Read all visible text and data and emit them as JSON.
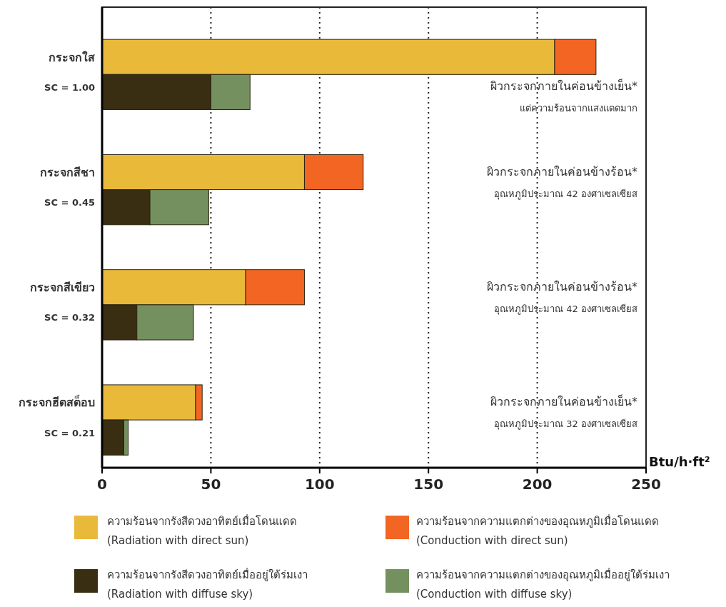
{
  "chart_data": {
    "type": "bar",
    "orientation": "horizontal",
    "stacked": true,
    "categories": [
      "กระจกใส",
      "SC = 1.00",
      "กระจกสีชา",
      "SC = 0.45",
      "กระจกสีเขียว",
      "SC = 0.32",
      "กระจกฮีตสต็อบ",
      "SC = 0.21"
    ],
    "series": [
      {
        "name": "ความร้อนจากรังสีดวงอาทิตย์เมื่อโดนแดด\n(Radiation with direct sun)",
        "color": "#e9b93a",
        "values": [
          208,
          null,
          93,
          null,
          66,
          null,
          43,
          null
        ]
      },
      {
        "name": "ความร้อนจากความแตกต่างของอุณหภูมิเมื่อโดนแดด\n(Conduction with direct sun)",
        "color": "#f26522",
        "values": [
          19,
          null,
          27,
          null,
          27,
          null,
          3,
          null
        ]
      },
      {
        "name": "ความร้อนจากรังสีดวงอาทิตย์เมื่ออยู่ใต้ร่มเงา\n(Radiation with diffuse sky)",
        "color": "#3a2e12",
        "values": [
          null,
          50,
          null,
          22,
          null,
          16,
          null,
          10
        ]
      },
      {
        "name": "ความร้อนจากความแตกต่างของอุณหภูมิเมื่ออยู่ใต้ร่มเงา\n(Conduction with diffuse sky)",
        "color": "#74905f",
        "values": [
          null,
          18,
          null,
          27,
          null,
          26,
          null,
          2
        ]
      }
    ],
    "xlabel": "Btu/h·ft²",
    "xlim": [
      0,
      250
    ],
    "xticks": [
      0,
      50,
      100,
      150,
      200,
      250
    ],
    "grid": "x",
    "legend": "bottom",
    "annotations": [
      "ผิวกระจกภายในค่อนข้างเย็น*",
      "แต่ความร้อนจากแสงแดดมาก",
      "ผิวกระจกภายในค่อนข้างร้อน*",
      "อุณหภูมิประมาณ 42 องศาเซลเซียส",
      "ผิวกระจกภายในค่อนข้างร้อน*",
      "อุณหภูมิประมาณ 42 องศาเซลเซียส",
      "ผิวกระจกภายในค่อนข้างเย็น*",
      "อุณหภูมิประมาณ 32 องศาเซลเซียส"
    ]
  }
}
